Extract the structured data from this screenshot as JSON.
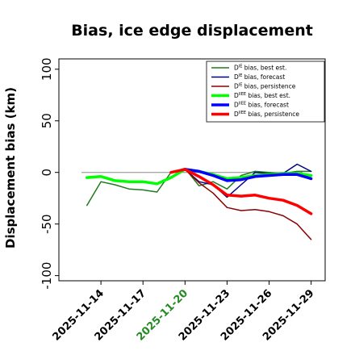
{
  "chart_data": {
    "type": "line",
    "title": "Bias, ice edge displacement",
    "ylabel": "Displacement bias (km)",
    "xlabel": "",
    "ylim": [
      -105,
      110
    ],
    "yticks": [
      100,
      50,
      0,
      -50,
      -100
    ],
    "ytick_labels": [
      "100",
      "50",
      "0",
      "-50",
      "-100"
    ],
    "xlim": [
      "2025-11-11",
      "2025-11-30"
    ],
    "xticks": [
      "2025-11-14",
      "2025-11-17",
      "2025-11-20",
      "2025-11-23",
      "2025-11-26",
      "2025-11-29"
    ],
    "xtick_colors": [
      "#000000",
      "#000000",
      "#228B22",
      "#000000",
      "#000000",
      "#000000"
    ],
    "zero_line": true,
    "grid": false,
    "legend_position": "top-right",
    "series": [
      {
        "name": "D^IE bias, best est.",
        "color": "#1f7a1f",
        "width": 1.5,
        "points": [
          [
            "2025-11-13",
            -32
          ],
          [
            "2025-11-14",
            -9
          ],
          [
            "2025-11-15",
            -12
          ],
          [
            "2025-11-16",
            -16
          ],
          [
            "2025-11-17",
            -17
          ],
          [
            "2025-11-18",
            -19
          ],
          [
            "2025-11-19",
            0
          ],
          [
            "2025-11-20",
            4
          ],
          [
            "2025-11-21",
            -13
          ],
          [
            "2025-11-22",
            -9
          ],
          [
            "2025-11-23",
            -16
          ],
          [
            "2025-11-24",
            -3
          ],
          [
            "2025-11-25",
            1
          ],
          [
            "2025-11-26",
            0
          ],
          [
            "2025-11-27",
            -1
          ],
          [
            "2025-11-28",
            1
          ],
          [
            "2025-11-29",
            1
          ]
        ]
      },
      {
        "name": "D^IE bias, forecast",
        "color": "#00008b",
        "width": 1.5,
        "points": [
          [
            "2025-11-20",
            3
          ],
          [
            "2025-11-21",
            -9
          ],
          [
            "2025-11-22",
            -12
          ],
          [
            "2025-11-23",
            -24
          ],
          [
            "2025-11-24",
            -12
          ],
          [
            "2025-11-25",
            0
          ],
          [
            "2025-11-26",
            -1
          ],
          [
            "2025-11-27",
            -1
          ],
          [
            "2025-11-28",
            8
          ],
          [
            "2025-11-29",
            1
          ]
        ]
      },
      {
        "name": "D^IE bias, persistence",
        "color": "#8b0000",
        "width": 1.5,
        "points": [
          [
            "2025-11-20",
            3
          ],
          [
            "2025-11-21",
            -10
          ],
          [
            "2025-11-22",
            -20
          ],
          [
            "2025-11-23",
            -34
          ],
          [
            "2025-11-24",
            -37
          ],
          [
            "2025-11-25",
            -36
          ],
          [
            "2025-11-26",
            -38
          ],
          [
            "2025-11-27",
            -42
          ],
          [
            "2025-11-28",
            -50
          ],
          [
            "2025-11-29",
            -65
          ]
        ]
      },
      {
        "name": "D^IIEE bias, best est.",
        "color": "#00ff00",
        "width": 3.5,
        "points": [
          [
            "2025-11-13",
            -5
          ],
          [
            "2025-11-14",
            -4
          ],
          [
            "2025-11-15",
            -8
          ],
          [
            "2025-11-16",
            -9
          ],
          [
            "2025-11-17",
            -9
          ],
          [
            "2025-11-18",
            -11
          ],
          [
            "2025-11-19",
            -5
          ],
          [
            "2025-11-20",
            3
          ],
          [
            "2025-11-21",
            1
          ],
          [
            "2025-11-22",
            -2
          ],
          [
            "2025-11-23",
            -6
          ],
          [
            "2025-11-24",
            -5
          ],
          [
            "2025-11-25",
            -3
          ],
          [
            "2025-11-26",
            -2
          ],
          [
            "2025-11-27",
            -1
          ],
          [
            "2025-11-28",
            -1
          ],
          [
            "2025-11-29",
            -3
          ]
        ]
      },
      {
        "name": "D^IIEE bias, forecast",
        "color": "#0000ff",
        "width": 3.5,
        "points": [
          [
            "2025-11-20",
            3
          ],
          [
            "2025-11-21",
            1
          ],
          [
            "2025-11-22",
            -3
          ],
          [
            "2025-11-23",
            -8
          ],
          [
            "2025-11-24",
            -7
          ],
          [
            "2025-11-25",
            -4
          ],
          [
            "2025-11-26",
            -3
          ],
          [
            "2025-11-27",
            -2
          ],
          [
            "2025-11-28",
            -2
          ],
          [
            "2025-11-29",
            -6
          ]
        ]
      },
      {
        "name": "D^IIEE bias, persistence",
        "color": "#ff0000",
        "width": 3.5,
        "points": [
          [
            "2025-11-19",
            0
          ],
          [
            "2025-11-20",
            3
          ],
          [
            "2025-11-21",
            -4
          ],
          [
            "2025-11-22",
            -12
          ],
          [
            "2025-11-23",
            -22
          ],
          [
            "2025-11-24",
            -23
          ],
          [
            "2025-11-25",
            -22
          ],
          [
            "2025-11-26",
            -25
          ],
          [
            "2025-11-27",
            -27
          ],
          [
            "2025-11-28",
            -32
          ],
          [
            "2025-11-29",
            -40
          ]
        ]
      }
    ]
  }
}
